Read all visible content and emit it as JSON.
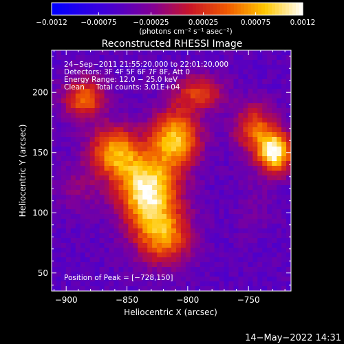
{
  "chart_data": {
    "type": "heatmap",
    "title": "Reconstructed RHESSI Image",
    "xlabel": "Heliocentric X (arcsec)",
    "ylabel": "Heliocentric Y (arcsec)",
    "xlim": [
      -912,
      -715
    ],
    "ylim": [
      35,
      235
    ],
    "xticks": [
      -900,
      -850,
      -800,
      -750
    ],
    "xtick_labels": [
      "−900",
      "−850",
      "−800",
      "−750"
    ],
    "yticks": [
      50,
      100,
      150,
      200
    ],
    "ytick_labels": [
      "50",
      "100",
      "150",
      "200"
    ],
    "colorbar": {
      "range": [
        -0.0012,
        0.0012
      ],
      "ticks": [
        -0.0012,
        -0.00075,
        -0.00025,
        0.00025,
        0.00075,
        0.0012
      ],
      "tick_labels": [
        "−0.0012",
        "−0.00075",
        "−0.00025",
        "0.00025",
        "0.00075",
        "0.0012"
      ],
      "units_text": "(photons cm⁻² s⁻¹ asec⁻²)",
      "colormap": "blue-purple-red-orange-yellow-white"
    },
    "sources": [
      {
        "x": -833,
        "y": 118,
        "peak": 0.00115,
        "sx": 17,
        "sy": 20
      },
      {
        "x": -810,
        "y": 162,
        "peak": 0.00085,
        "sx": 14,
        "sy": 17
      },
      {
        "x": -860,
        "y": 150,
        "peak": 0.0007,
        "sx": 15,
        "sy": 15
      },
      {
        "x": -820,
        "y": 80,
        "peak": 0.0006,
        "sx": 16,
        "sy": 16
      },
      {
        "x": -885,
        "y": 195,
        "peak": 0.0005,
        "sx": 12,
        "sy": 12
      },
      {
        "x": -728,
        "y": 150,
        "peak": 0.00115,
        "sx": 10,
        "sy": 12
      },
      {
        "x": -745,
        "y": 170,
        "peak": 0.0004,
        "sx": 12,
        "sy": 14
      },
      {
        "x": -790,
        "y": 200,
        "peak": 0.0003,
        "sx": 14,
        "sy": 10
      }
    ],
    "background_level": -0.0005,
    "negative_patches": [
      {
        "x": -745,
        "y": 105,
        "peak": -0.00035,
        "sx": 12,
        "sy": 18
      },
      {
        "x": -890,
        "y": 120,
        "peak": -0.0002,
        "sx": 12,
        "sy": 14
      }
    ]
  },
  "overlay": {
    "line1": "24−Sep−2011 21:55:20.000 to 22:01:20.000",
    "line2": "Detectors: 3F 4F 5F 6F 7F 8F, Att 0",
    "line3": "Energy Range: 12.0 − 25.0 keV",
    "line4": "Clean     Total counts: 3.01E+04",
    "peak_label": "Position of Peak = [−728,150]"
  },
  "footer": {
    "timestamp": "14−May−2022 14:31"
  }
}
